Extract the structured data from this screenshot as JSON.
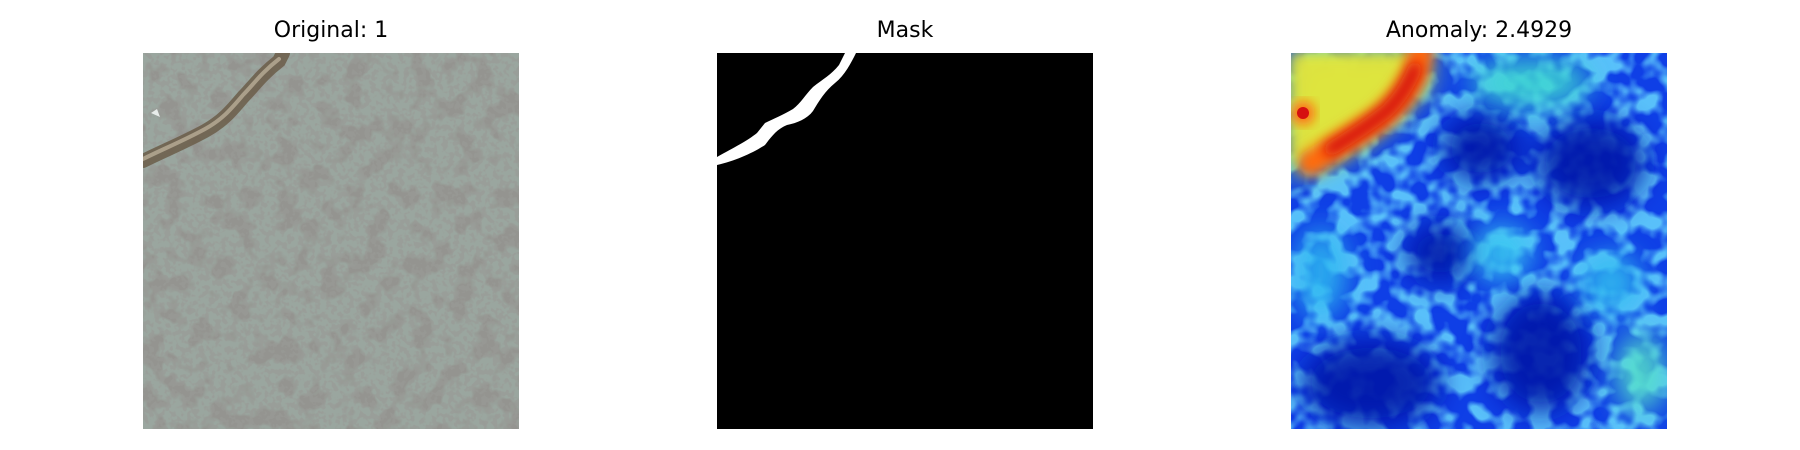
{
  "panels": [
    {
      "title": "Original: 1"
    },
    {
      "title": "Mask"
    },
    {
      "title": "Anomaly: 2.4929"
    }
  ]
}
